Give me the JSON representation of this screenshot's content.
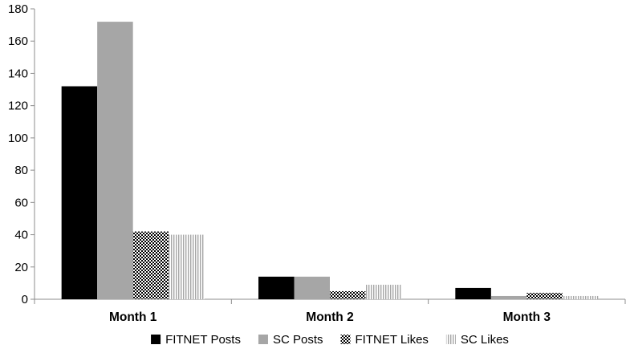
{
  "chart_data": {
    "type": "bar",
    "categories": [
      "Month 1",
      "Month 2",
      "Month 3"
    ],
    "series": [
      {
        "name": "FITNET Posts",
        "values": [
          132,
          14,
          7
        ],
        "color": "#000000",
        "pattern": "solid"
      },
      {
        "name": "SC Posts",
        "values": [
          172,
          14,
          2
        ],
        "color": "#a6a6a6",
        "pattern": "solid"
      },
      {
        "name": "FITNET Likes",
        "values": [
          42,
          5,
          4
        ],
        "color": "#000000",
        "pattern": "checker"
      },
      {
        "name": "SC Likes",
        "values": [
          40,
          9,
          2
        ],
        "color": "#a6a6a6",
        "pattern": "vertical-lines"
      }
    ],
    "ylim": [
      0,
      180
    ],
    "yticks": [
      0,
      20,
      40,
      60,
      80,
      100,
      120,
      140,
      160,
      180
    ],
    "grid": false,
    "legend": "bottom",
    "title": "",
    "xlabel": "",
    "ylabel": ""
  }
}
